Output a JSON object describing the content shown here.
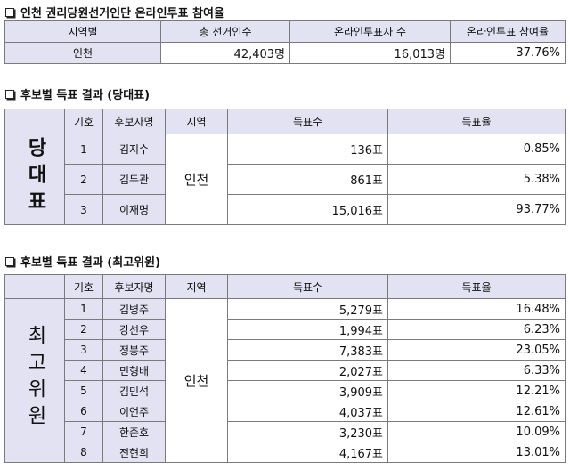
{
  "section1": {
    "title": "인천 권리당원선거인단 온라인투표 참여율",
    "table": {
      "header": [
        "지역별",
        "총 선거인수",
        "온라인투표자 수",
        "온라인투표 참여율"
      ],
      "rows": [
        [
          "인천",
          "42,403명",
          "16,013명",
          "37.76%"
        ]
      ]
    }
  },
  "section2": {
    "title": "후보별 득표 결과 (당대표)",
    "side": "당대표",
    "region": "인천",
    "table": {
      "header": [
        "기호",
        "후보자명",
        "지역",
        "득표수",
        "득표율"
      ],
      "rows": [
        [
          "1",
          "김지수",
          "136표",
          "0.85%"
        ],
        [
          "2",
          "김두관",
          "861표",
          "5.38%"
        ],
        [
          "3",
          "이재명",
          "15,016표",
          "93.77%"
        ]
      ]
    }
  },
  "section3": {
    "title": "후보별 득표 결과 (최고위원)",
    "side": "최고위원",
    "region": "인천",
    "table": {
      "header": [
        "기호",
        "후보자명",
        "지역",
        "득표수",
        "득표율"
      ],
      "rows": [
        [
          "1",
          "김병주",
          "5,279표",
          "16.48%"
        ],
        [
          "2",
          "강선우",
          "1,994표",
          "6.23%"
        ],
        [
          "3",
          "정봉주",
          "7,383표",
          "23.05%"
        ],
        [
          "4",
          "민형배",
          "2,027표",
          "6.33%"
        ],
        [
          "5",
          "김민석",
          "3,909표",
          "12.21%"
        ],
        [
          "6",
          "이언주",
          "4,037표",
          "12.61%"
        ],
        [
          "7",
          "한준호",
          "3,230표",
          "10.09%"
        ],
        [
          "8",
          "전현희",
          "4,167표",
          "13.01%"
        ]
      ]
    }
  }
}
